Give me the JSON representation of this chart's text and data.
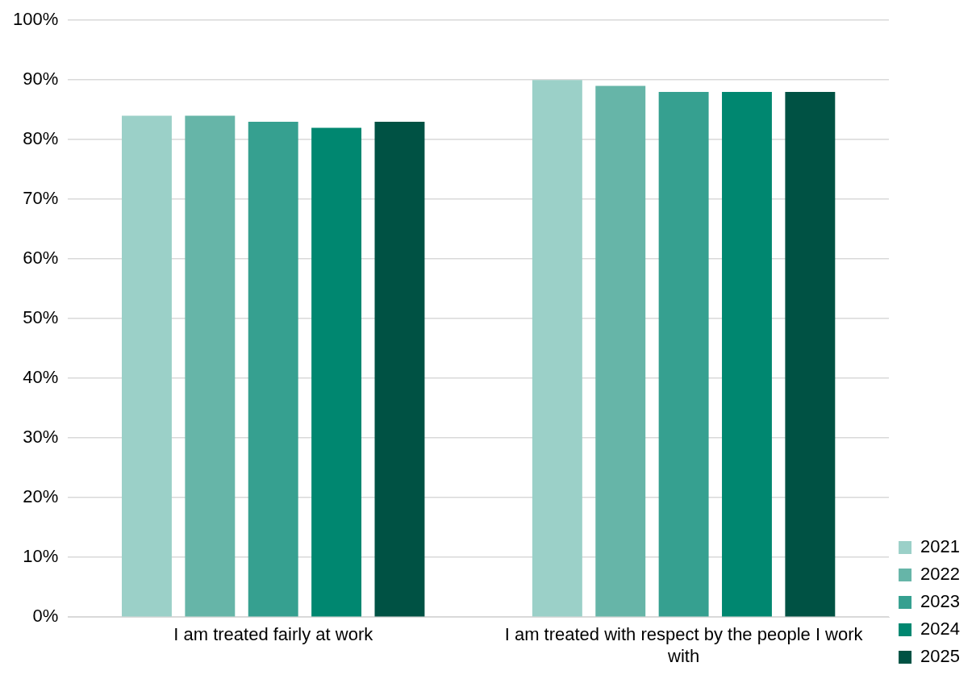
{
  "chart_data": {
    "type": "bar",
    "categories": [
      "I am treated fairly at work",
      "I am treated with respect by the people I work with"
    ],
    "series": [
      {
        "name": "2021",
        "color": "#9bd0c8",
        "values": [
          84,
          90
        ]
      },
      {
        "name": "2022",
        "color": "#66b5a8",
        "values": [
          84,
          89
        ]
      },
      {
        "name": "2023",
        "color": "#36a090",
        "values": [
          83,
          88
        ]
      },
      {
        "name": "2024",
        "color": "#008770",
        "values": [
          82,
          88
        ]
      },
      {
        "name": "2025",
        "color": "#005244",
        "values": [
          83,
          88
        ]
      }
    ],
    "ylim": [
      0,
      100
    ],
    "yticks": [
      {
        "value": 0,
        "label": "0%"
      },
      {
        "value": 10,
        "label": "10%"
      },
      {
        "value": 20,
        "label": "20%"
      },
      {
        "value": 30,
        "label": "30%"
      },
      {
        "value": 40,
        "label": "40%"
      },
      {
        "value": 50,
        "label": "50%"
      },
      {
        "value": 60,
        "label": "60%"
      },
      {
        "value": 70,
        "label": "70%"
      },
      {
        "value": 80,
        "label": "80%"
      },
      {
        "value": 90,
        "label": "90%"
      },
      {
        "value": 100,
        "label": "100%"
      }
    ],
    "grid": "y",
    "legend": "right"
  }
}
